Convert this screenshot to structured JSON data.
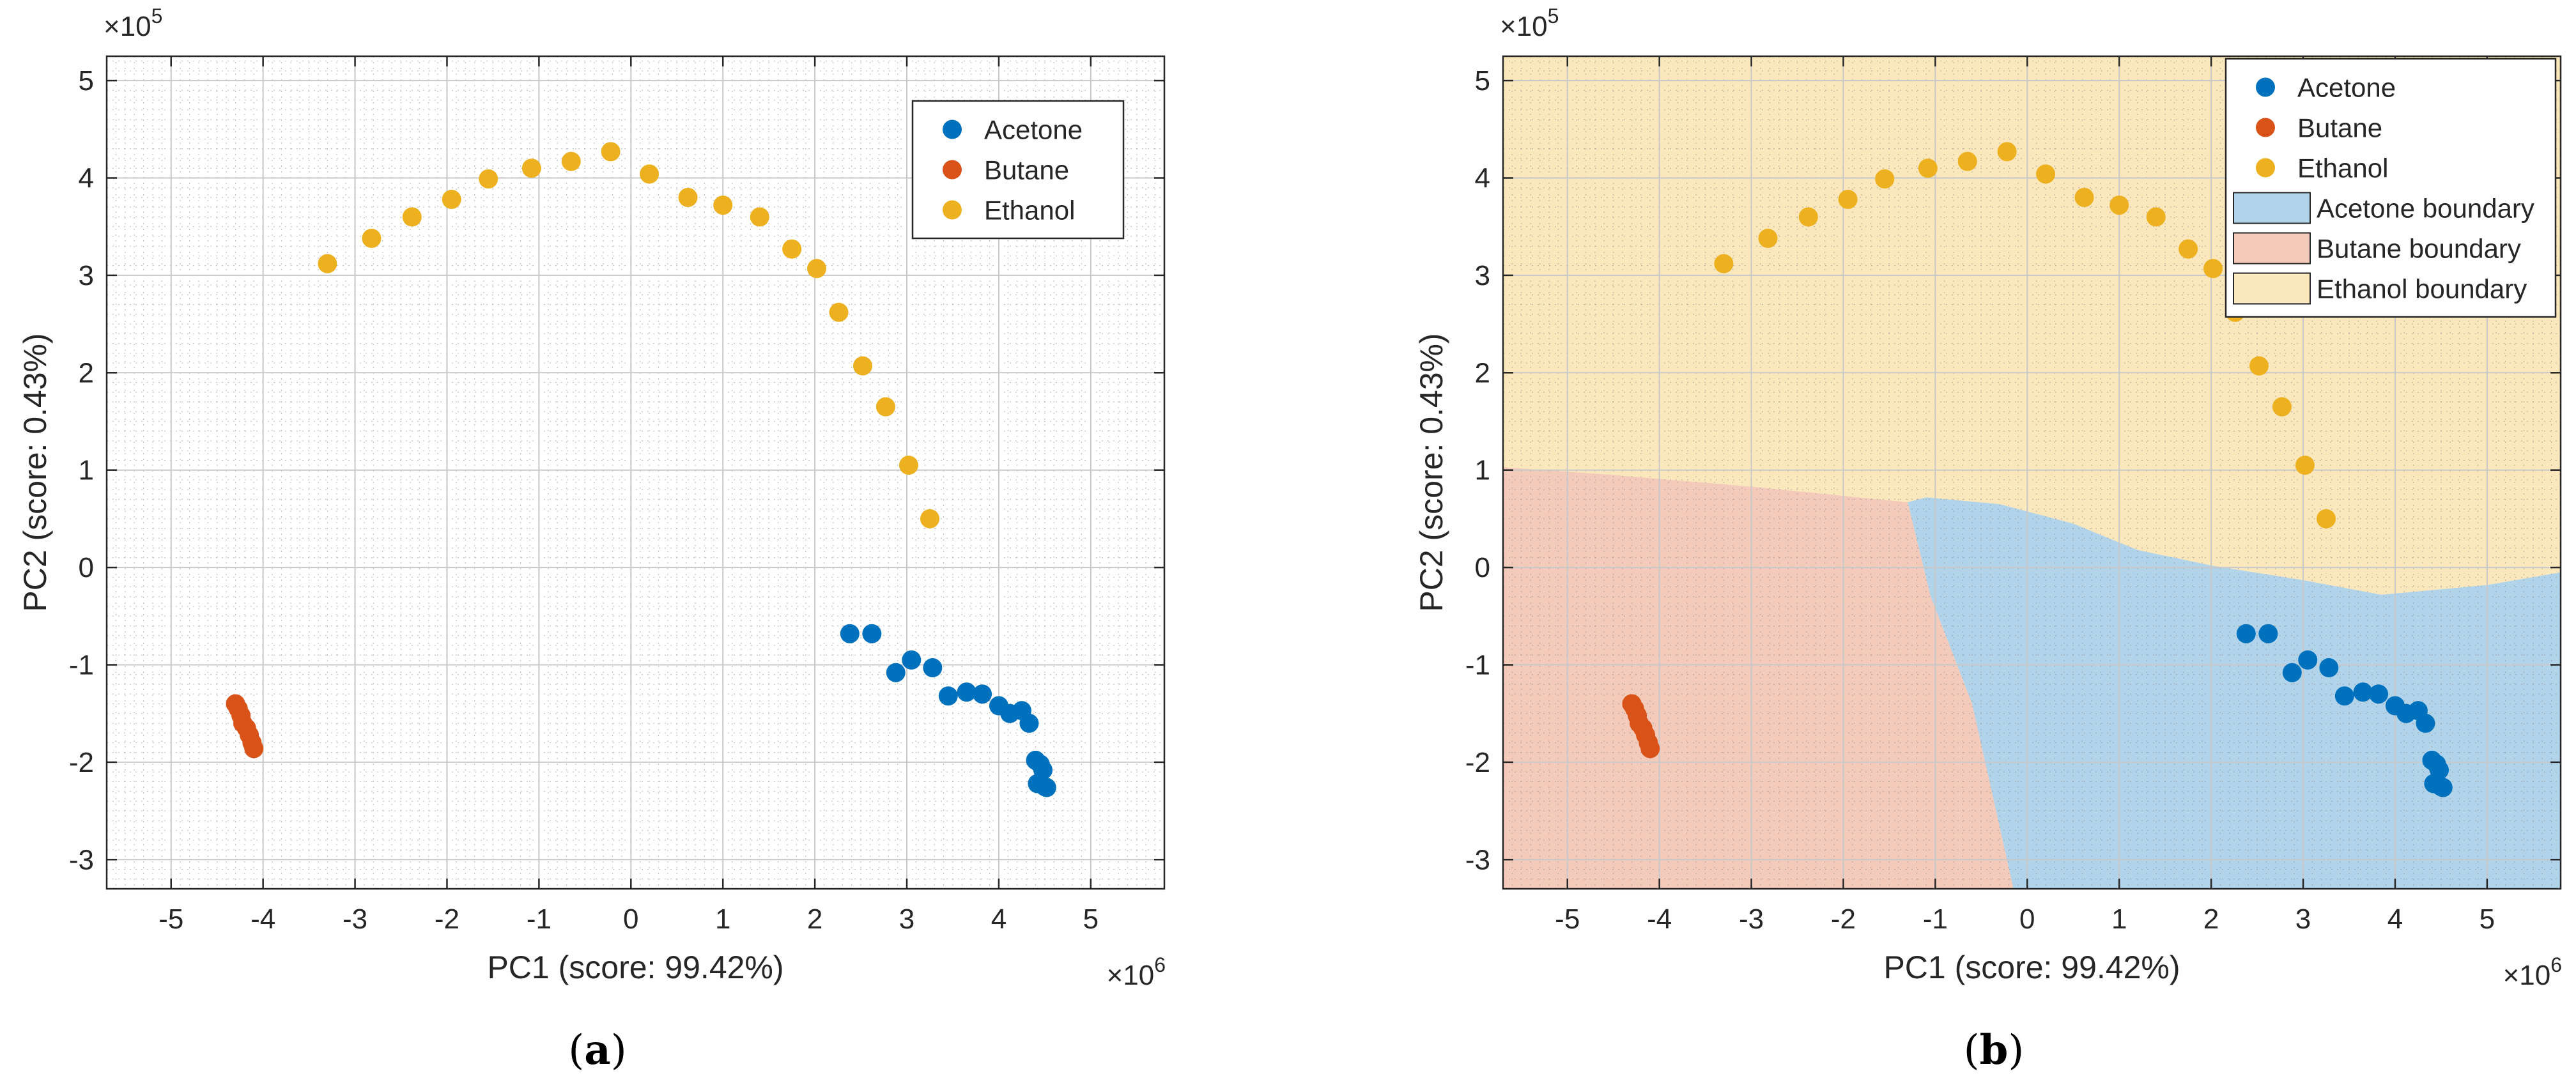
{
  "panels": [
    {
      "label_open": "(",
      "label_letter": "a",
      "label_close": ")",
      "chart_data": {
        "type": "scatter",
        "xlabel": "PC1 (score: 99.42%)",
        "ylabel": "PC2 (score: 0.43%)",
        "x_multiplier_text": "×10",
        "x_multiplier_exp": "6",
        "y_multiplier_text": "×10",
        "y_multiplier_exp": "5",
        "xlim": [
          -5.7,
          5.8
        ],
        "ylim": [
          -3.3,
          5.25
        ],
        "xticks": [
          -5,
          -4,
          -3,
          -2,
          -1,
          0,
          1,
          2,
          3,
          4,
          5
        ],
        "yticks": [
          -3,
          -2,
          -1,
          0,
          1,
          2,
          3,
          4,
          5
        ],
        "grid": true,
        "minor_grid": true,
        "legend_position": "top-right",
        "series": [
          {
            "name": "Acetone",
            "color": "#0072BD",
            "points": [
              [
                2.38,
                -0.68
              ],
              [
                2.62,
                -0.68
              ],
              [
                3.05,
                -0.95
              ],
              [
                2.88,
                -1.08
              ],
              [
                3.28,
                -1.03
              ],
              [
                3.45,
                -1.32
              ],
              [
                3.65,
                -1.28
              ],
              [
                3.82,
                -1.3
              ],
              [
                4.0,
                -1.42
              ],
              [
                4.12,
                -1.5
              ],
              [
                4.25,
                -1.47
              ],
              [
                4.33,
                -1.6
              ],
              [
                4.4,
                -1.98
              ],
              [
                4.45,
                -2.02
              ],
              [
                4.48,
                -2.08
              ],
              [
                4.42,
                -2.22
              ],
              [
                4.5,
                -2.25
              ],
              [
                4.52,
                -2.26
              ]
            ]
          },
          {
            "name": "Butane",
            "color": "#D95319",
            "points": [
              [
                -4.3,
                -1.4
              ],
              [
                -4.27,
                -1.45
              ],
              [
                -4.24,
                -1.52
              ],
              [
                -4.22,
                -1.6
              ],
              [
                -4.18,
                -1.65
              ],
              [
                -4.15,
                -1.72
              ],
              [
                -4.12,
                -1.8
              ],
              [
                -4.1,
                -1.86
              ]
            ]
          },
          {
            "name": "Ethanol",
            "color": "#EDB120",
            "points": [
              [
                -3.3,
                3.12
              ],
              [
                -2.82,
                3.38
              ],
              [
                -2.38,
                3.6
              ],
              [
                -1.95,
                3.78
              ],
              [
                -1.55,
                3.99
              ],
              [
                -1.08,
                4.1
              ],
              [
                -0.65,
                4.17
              ],
              [
                -0.22,
                4.27
              ],
              [
                0.2,
                4.04
              ],
              [
                0.62,
                3.8
              ],
              [
                1.0,
                3.72
              ],
              [
                1.4,
                3.6
              ],
              [
                1.75,
                3.27
              ],
              [
                2.02,
                3.07
              ],
              [
                2.26,
                2.62
              ],
              [
                2.52,
                2.07
              ],
              [
                2.77,
                1.65
              ],
              [
                3.02,
                1.05
              ],
              [
                3.25,
                0.5
              ]
            ]
          }
        ]
      }
    },
    {
      "label_open": "(",
      "label_letter": "b",
      "label_close": ")",
      "chart_data": {
        "type": "scatter",
        "xlabel": "PC1 (score: 99.42%)",
        "ylabel": "PC2 (score: 0.43%)",
        "x_multiplier_text": "×10",
        "x_multiplier_exp": "6",
        "y_multiplier_text": "×10",
        "y_multiplier_exp": "5",
        "xlim": [
          -5.7,
          5.8
        ],
        "ylim": [
          -3.3,
          5.25
        ],
        "xticks": [
          -5,
          -4,
          -3,
          -2,
          -1,
          0,
          1,
          2,
          3,
          4,
          5
        ],
        "yticks": [
          -3,
          -2,
          -1,
          0,
          1,
          2,
          3,
          4,
          5
        ],
        "grid": true,
        "minor_grid": true,
        "legend_position": "top-right",
        "regions": [
          {
            "name": "Acetone boundary",
            "color": "#0072BD",
            "alpha": 0.3,
            "polygon": [
              [
                -1.3,
                0.67
              ],
              [
                -1.1,
                0.72
              ],
              [
                -0.3,
                0.65
              ],
              [
                0.5,
                0.45
              ],
              [
                1.2,
                0.18
              ],
              [
                2.0,
                0.02
              ],
              [
                3.0,
                -0.13
              ],
              [
                3.85,
                -0.28
              ],
              [
                5.0,
                -0.18
              ],
              [
                5.8,
                -0.05
              ],
              [
                5.8,
                -3.3
              ],
              [
                -0.15,
                -3.3
              ],
              [
                -0.6,
                -1.4
              ],
              [
                -1.05,
                -0.3
              ]
            ]
          },
          {
            "name": "Butane boundary",
            "color": "#D95319",
            "alpha": 0.3,
            "polygon": [
              [
                -5.7,
                1.03
              ],
              [
                -4.5,
                0.95
              ],
              [
                -3.0,
                0.83
              ],
              [
                -1.3,
                0.67
              ],
              [
                -1.05,
                -0.3
              ],
              [
                -0.6,
                -1.4
              ],
              [
                -0.15,
                -3.3
              ],
              [
                -5.7,
                -3.3
              ]
            ]
          },
          {
            "name": "Ethanol boundary",
            "color": "#EDB120",
            "alpha": 0.3,
            "polygon": [
              [
                -5.7,
                5.25
              ],
              [
                5.8,
                5.25
              ],
              [
                5.8,
                -0.05
              ],
              [
                5.0,
                -0.18
              ],
              [
                3.85,
                -0.28
              ],
              [
                3.0,
                -0.13
              ],
              [
                2.0,
                0.02
              ],
              [
                1.2,
                0.18
              ],
              [
                0.5,
                0.45
              ],
              [
                -0.3,
                0.65
              ],
              [
                -1.1,
                0.72
              ],
              [
                -1.3,
                0.67
              ],
              [
                -3.0,
                0.83
              ],
              [
                -4.5,
                0.95
              ],
              [
                -5.7,
                1.03
              ]
            ]
          }
        ],
        "series": [
          {
            "name": "Acetone",
            "color": "#0072BD",
            "points": [
              [
                2.38,
                -0.68
              ],
              [
                2.62,
                -0.68
              ],
              [
                3.05,
                -0.95
              ],
              [
                2.88,
                -1.08
              ],
              [
                3.28,
                -1.03
              ],
              [
                3.45,
                -1.32
              ],
              [
                3.65,
                -1.28
              ],
              [
                3.82,
                -1.3
              ],
              [
                4.0,
                -1.42
              ],
              [
                4.12,
                -1.5
              ],
              [
                4.25,
                -1.47
              ],
              [
                4.33,
                -1.6
              ],
              [
                4.4,
                -1.98
              ],
              [
                4.45,
                -2.02
              ],
              [
                4.48,
                -2.08
              ],
              [
                4.42,
                -2.22
              ],
              [
                4.5,
                -2.25
              ],
              [
                4.52,
                -2.26
              ]
            ]
          },
          {
            "name": "Butane",
            "color": "#D95319",
            "points": [
              [
                -4.3,
                -1.4
              ],
              [
                -4.27,
                -1.45
              ],
              [
                -4.24,
                -1.52
              ],
              [
                -4.22,
                -1.6
              ],
              [
                -4.18,
                -1.65
              ],
              [
                -4.15,
                -1.72
              ],
              [
                -4.12,
                -1.8
              ],
              [
                -4.1,
                -1.86
              ]
            ]
          },
          {
            "name": "Ethanol",
            "color": "#EDB120",
            "points": [
              [
                -3.3,
                3.12
              ],
              [
                -2.82,
                3.38
              ],
              [
                -2.38,
                3.6
              ],
              [
                -1.95,
                3.78
              ],
              [
                -1.55,
                3.99
              ],
              [
                -1.08,
                4.1
              ],
              [
                -0.65,
                4.17
              ],
              [
                -0.22,
                4.27
              ],
              [
                0.2,
                4.04
              ],
              [
                0.62,
                3.8
              ],
              [
                1.0,
                3.72
              ],
              [
                1.4,
                3.6
              ],
              [
                1.75,
                3.27
              ],
              [
                2.02,
                3.07
              ],
              [
                2.26,
                2.62
              ],
              [
                2.52,
                2.07
              ],
              [
                2.77,
                1.65
              ],
              [
                3.02,
                1.05
              ],
              [
                3.25,
                0.5
              ]
            ]
          }
        ]
      }
    }
  ]
}
